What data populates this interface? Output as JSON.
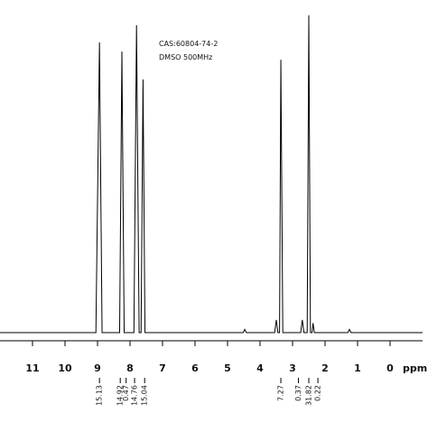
{
  "chart_data": {
    "type": "line",
    "annotations": [
      "CAS:60804-74-2",
      "DMSO 500MHz"
    ],
    "x_label": "ppm",
    "xlim": [
      12,
      -1
    ],
    "xticks": [
      11,
      10,
      9,
      8,
      7,
      6,
      5,
      4,
      3,
      2,
      1,
      0
    ],
    "ylim": [
      0,
      100
    ],
    "series": [
      {
        "color": "#000000",
        "x": [
          12,
          9.05,
          8.94,
          8.86,
          8.32,
          8.25,
          8.18,
          7.88,
          7.8,
          7.72,
          7.66,
          7.6,
          7.54,
          4.52,
          4.47,
          4.42,
          3.55,
          3.5,
          3.45,
          3.4,
          3.36,
          3.3,
          2.75,
          2.7,
          2.65,
          2.55,
          2.5,
          2.45,
          2.4,
          2.37,
          2.33,
          1.3,
          1.25,
          1.2,
          -1
        ],
        "values": [
          0,
          0,
          91.5,
          0,
          0,
          88.6,
          0,
          0,
          96.9,
          0,
          0,
          79.8,
          0,
          0,
          1,
          0,
          0,
          4,
          0,
          0,
          86,
          0,
          0,
          4,
          0,
          0,
          100,
          0,
          0,
          3,
          0,
          0,
          1,
          0,
          0
        ]
      }
    ],
    "integrals": {
      "x": [
        8.94,
        8.3,
        8.12,
        7.86,
        7.55,
        3.36,
        2.82,
        2.5,
        2.22
      ],
      "values": [
        15.13,
        14.92,
        0.47,
        14.76,
        15.04,
        7.27,
        0.37,
        31.82,
        0.22
      ]
    }
  }
}
